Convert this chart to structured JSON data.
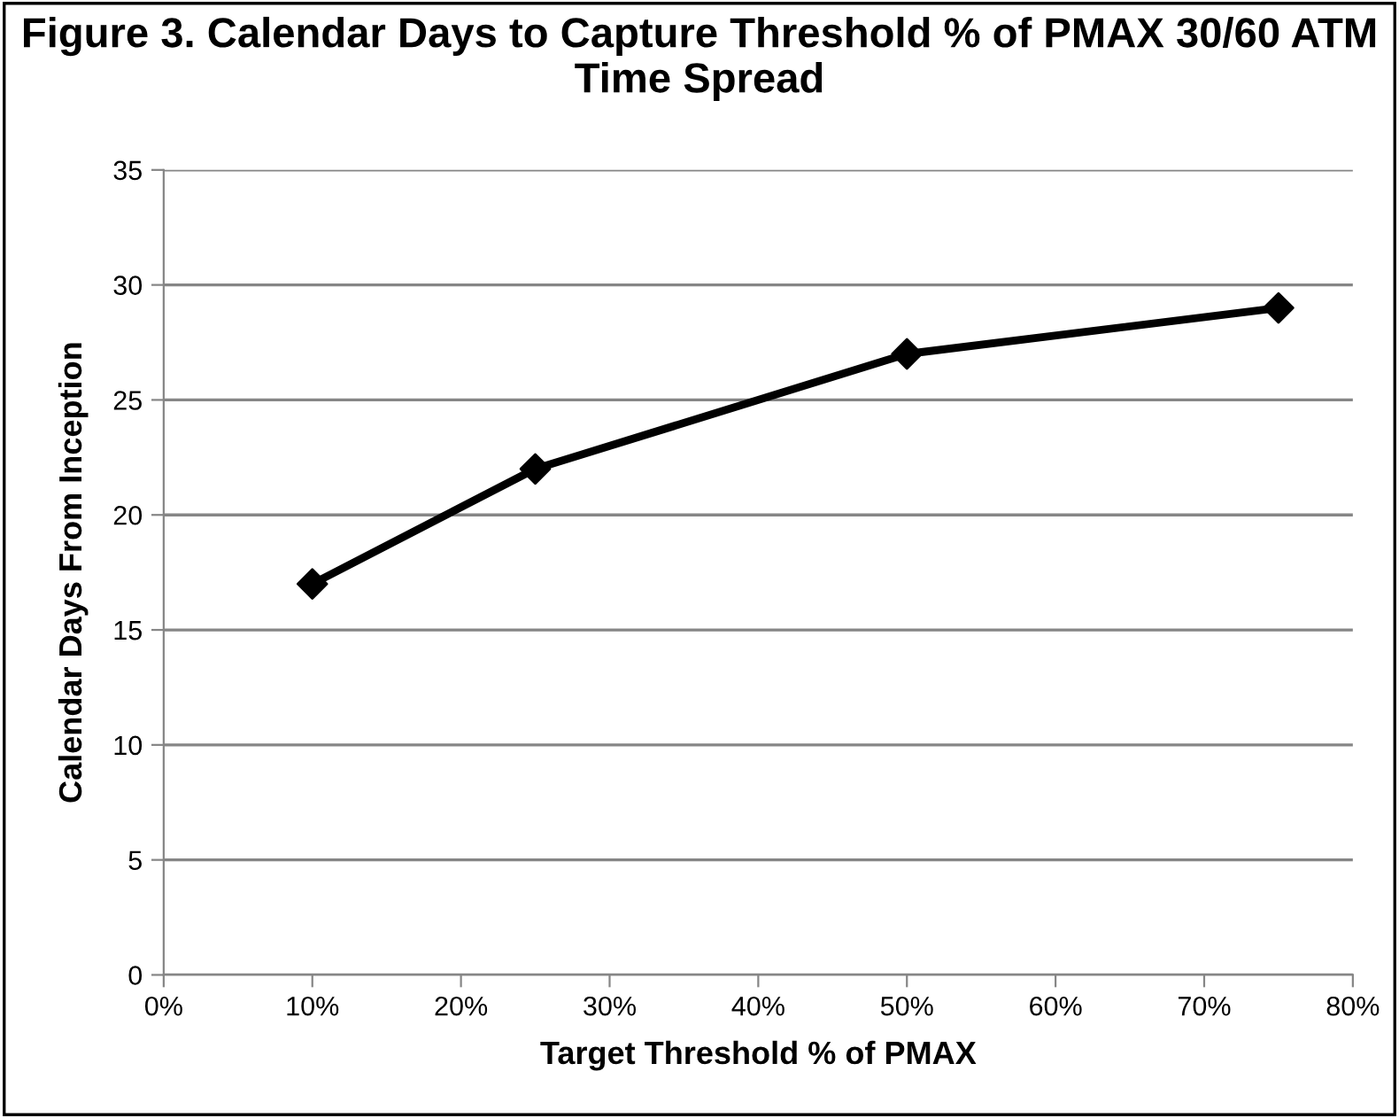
{
  "chart_data": {
    "type": "line",
    "title": "Figure 3. Calendar Days to Capture Threshold % of PMAX 30/60 ATM Time Spread",
    "xlabel": "Target Threshold % of PMAX",
    "ylabel": "Calendar Days From Inception",
    "x": [
      10,
      25,
      50,
      75
    ],
    "series": [
      {
        "color": "#000000",
        "values": [
          17,
          22,
          27,
          29
        ]
      }
    ],
    "xlim": [
      0,
      80
    ],
    "xticks": [
      {
        "value": 0,
        "label": "0%"
      },
      {
        "value": 10,
        "label": "10%"
      },
      {
        "value": 20,
        "label": "20%"
      },
      {
        "value": 30,
        "label": "30%"
      },
      {
        "value": 40,
        "label": "40%"
      },
      {
        "value": 50,
        "label": "50%"
      },
      {
        "value": 60,
        "label": "60%"
      },
      {
        "value": 70,
        "label": "70%"
      },
      {
        "value": 80,
        "label": "80%"
      }
    ],
    "ylim": [
      0,
      35
    ],
    "yticks": [
      0,
      5,
      10,
      15,
      20,
      25,
      30,
      35
    ],
    "grid": "y",
    "legend": false,
    "marker": "diamond",
    "line_style": "solid"
  }
}
